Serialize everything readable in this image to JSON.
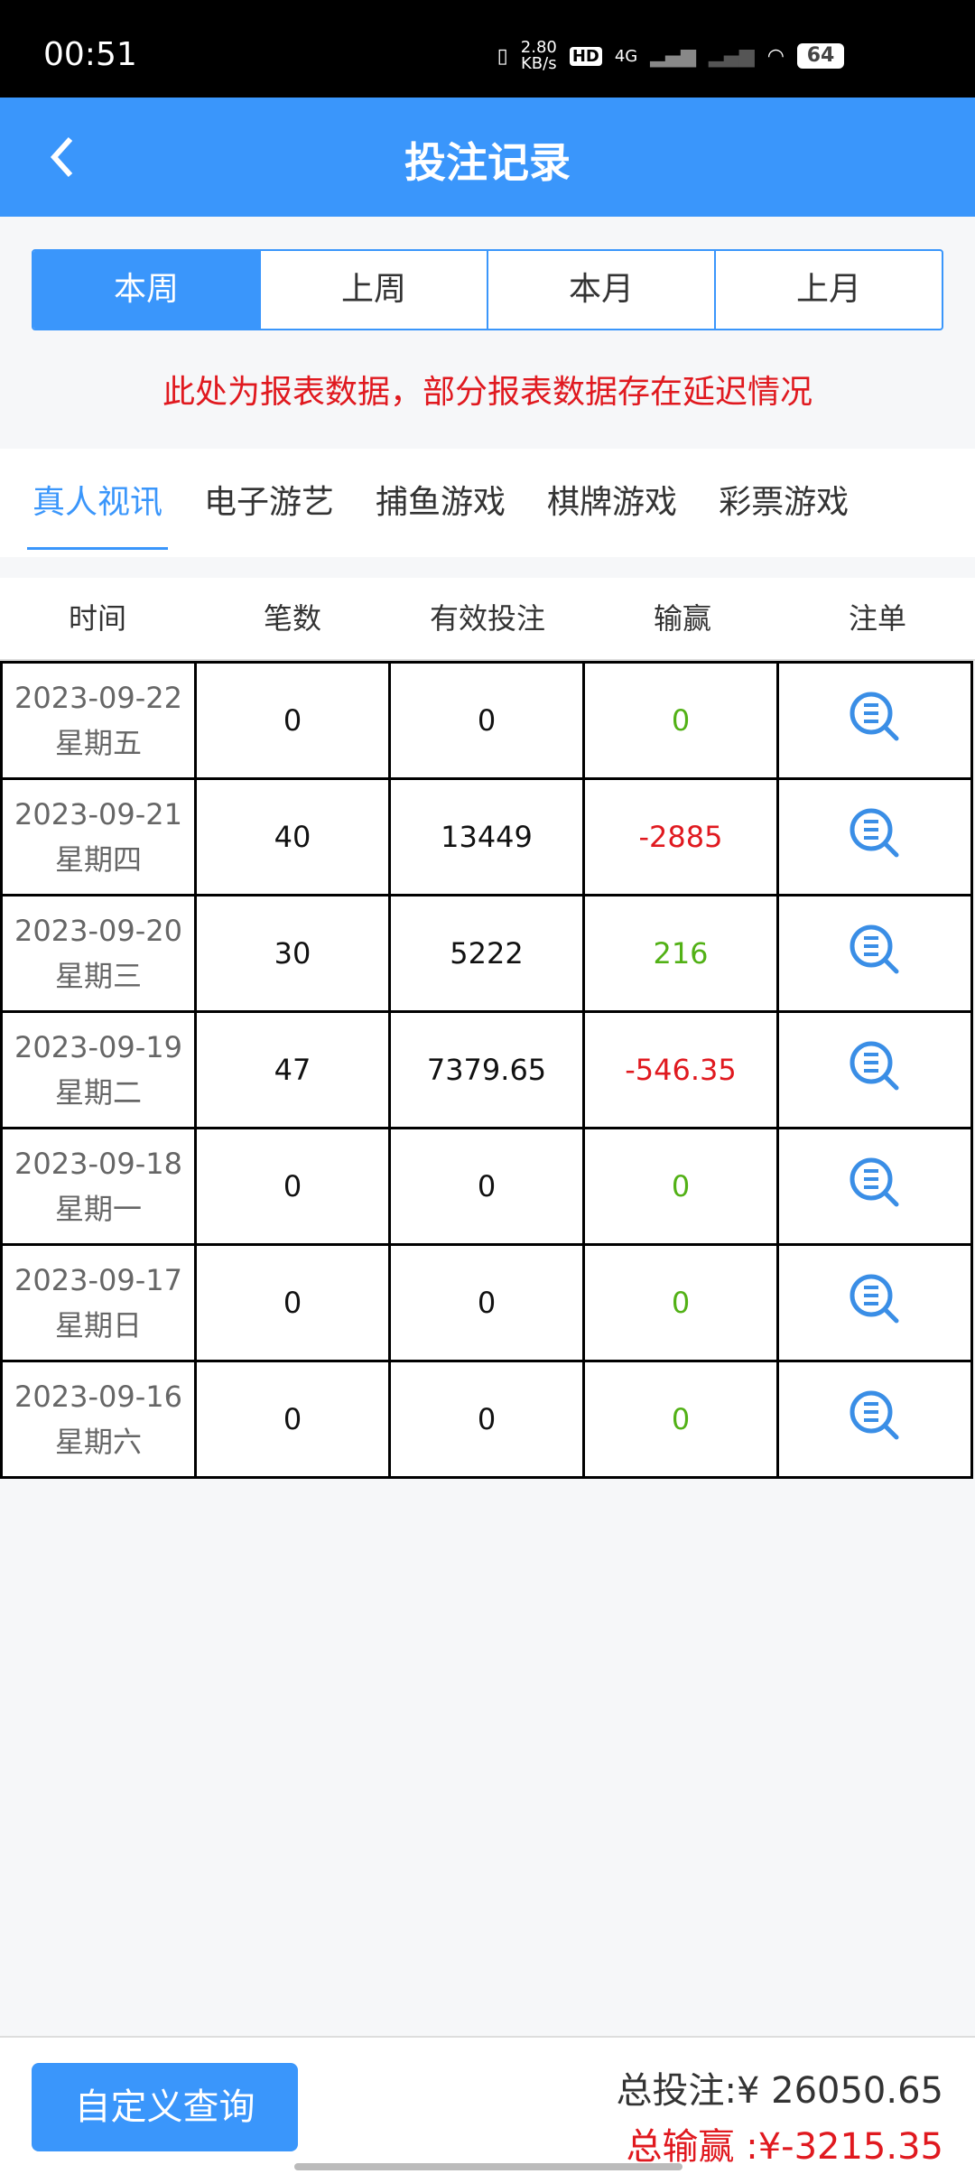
{
  "status_bar": {
    "time": "00:51",
    "speed": "2.80",
    "speed_unit": "KB/s",
    "network": "4G",
    "battery": "64"
  },
  "header": {
    "title": "投注记录",
    "back_icon": "chevron-left-icon"
  },
  "period_tabs": [
    "本周",
    "上周",
    "本月",
    "上月"
  ],
  "active_period": "本周",
  "notice": "此处为报表数据，部分报表数据存在延迟情况",
  "categories": [
    "真人视讯",
    "电子游艺",
    "捕鱼游戏",
    "棋牌游戏",
    "彩票游戏"
  ],
  "active_category": "真人视讯",
  "table": {
    "columns": [
      "时间",
      "笔数",
      "有效投注",
      "输赢",
      "注单"
    ],
    "rows": [
      {
        "date": "2023-09-22",
        "weekday": "星期五",
        "count": "0",
        "valid": "0",
        "win": "0",
        "sign": "pos"
      },
      {
        "date": "2023-09-21",
        "weekday": "星期四",
        "count": "40",
        "valid": "13449",
        "win": "-2885",
        "sign": "neg"
      },
      {
        "date": "2023-09-20",
        "weekday": "星期三",
        "count": "30",
        "valid": "5222",
        "win": "216",
        "sign": "pos"
      },
      {
        "date": "2023-09-19",
        "weekday": "星期二",
        "count": "47",
        "valid": "7379.65",
        "win": "-546.35",
        "sign": "neg"
      },
      {
        "date": "2023-09-18",
        "weekday": "星期一",
        "count": "0",
        "valid": "0",
        "win": "0",
        "sign": "pos"
      },
      {
        "date": "2023-09-17",
        "weekday": "星期日",
        "count": "0",
        "valid": "0",
        "win": "0",
        "sign": "pos"
      },
      {
        "date": "2023-09-16",
        "weekday": "星期六",
        "count": "0",
        "valid": "0",
        "win": "0",
        "sign": "pos"
      }
    ]
  },
  "footer": {
    "custom_query": "自定义查询",
    "total_bet": "总投注:¥ 26050.65",
    "total_win": "总输赢 :¥-3215.35"
  },
  "colors": {
    "accent": "#3a96fb",
    "positive": "#52b116",
    "negative": "#e0191f"
  }
}
